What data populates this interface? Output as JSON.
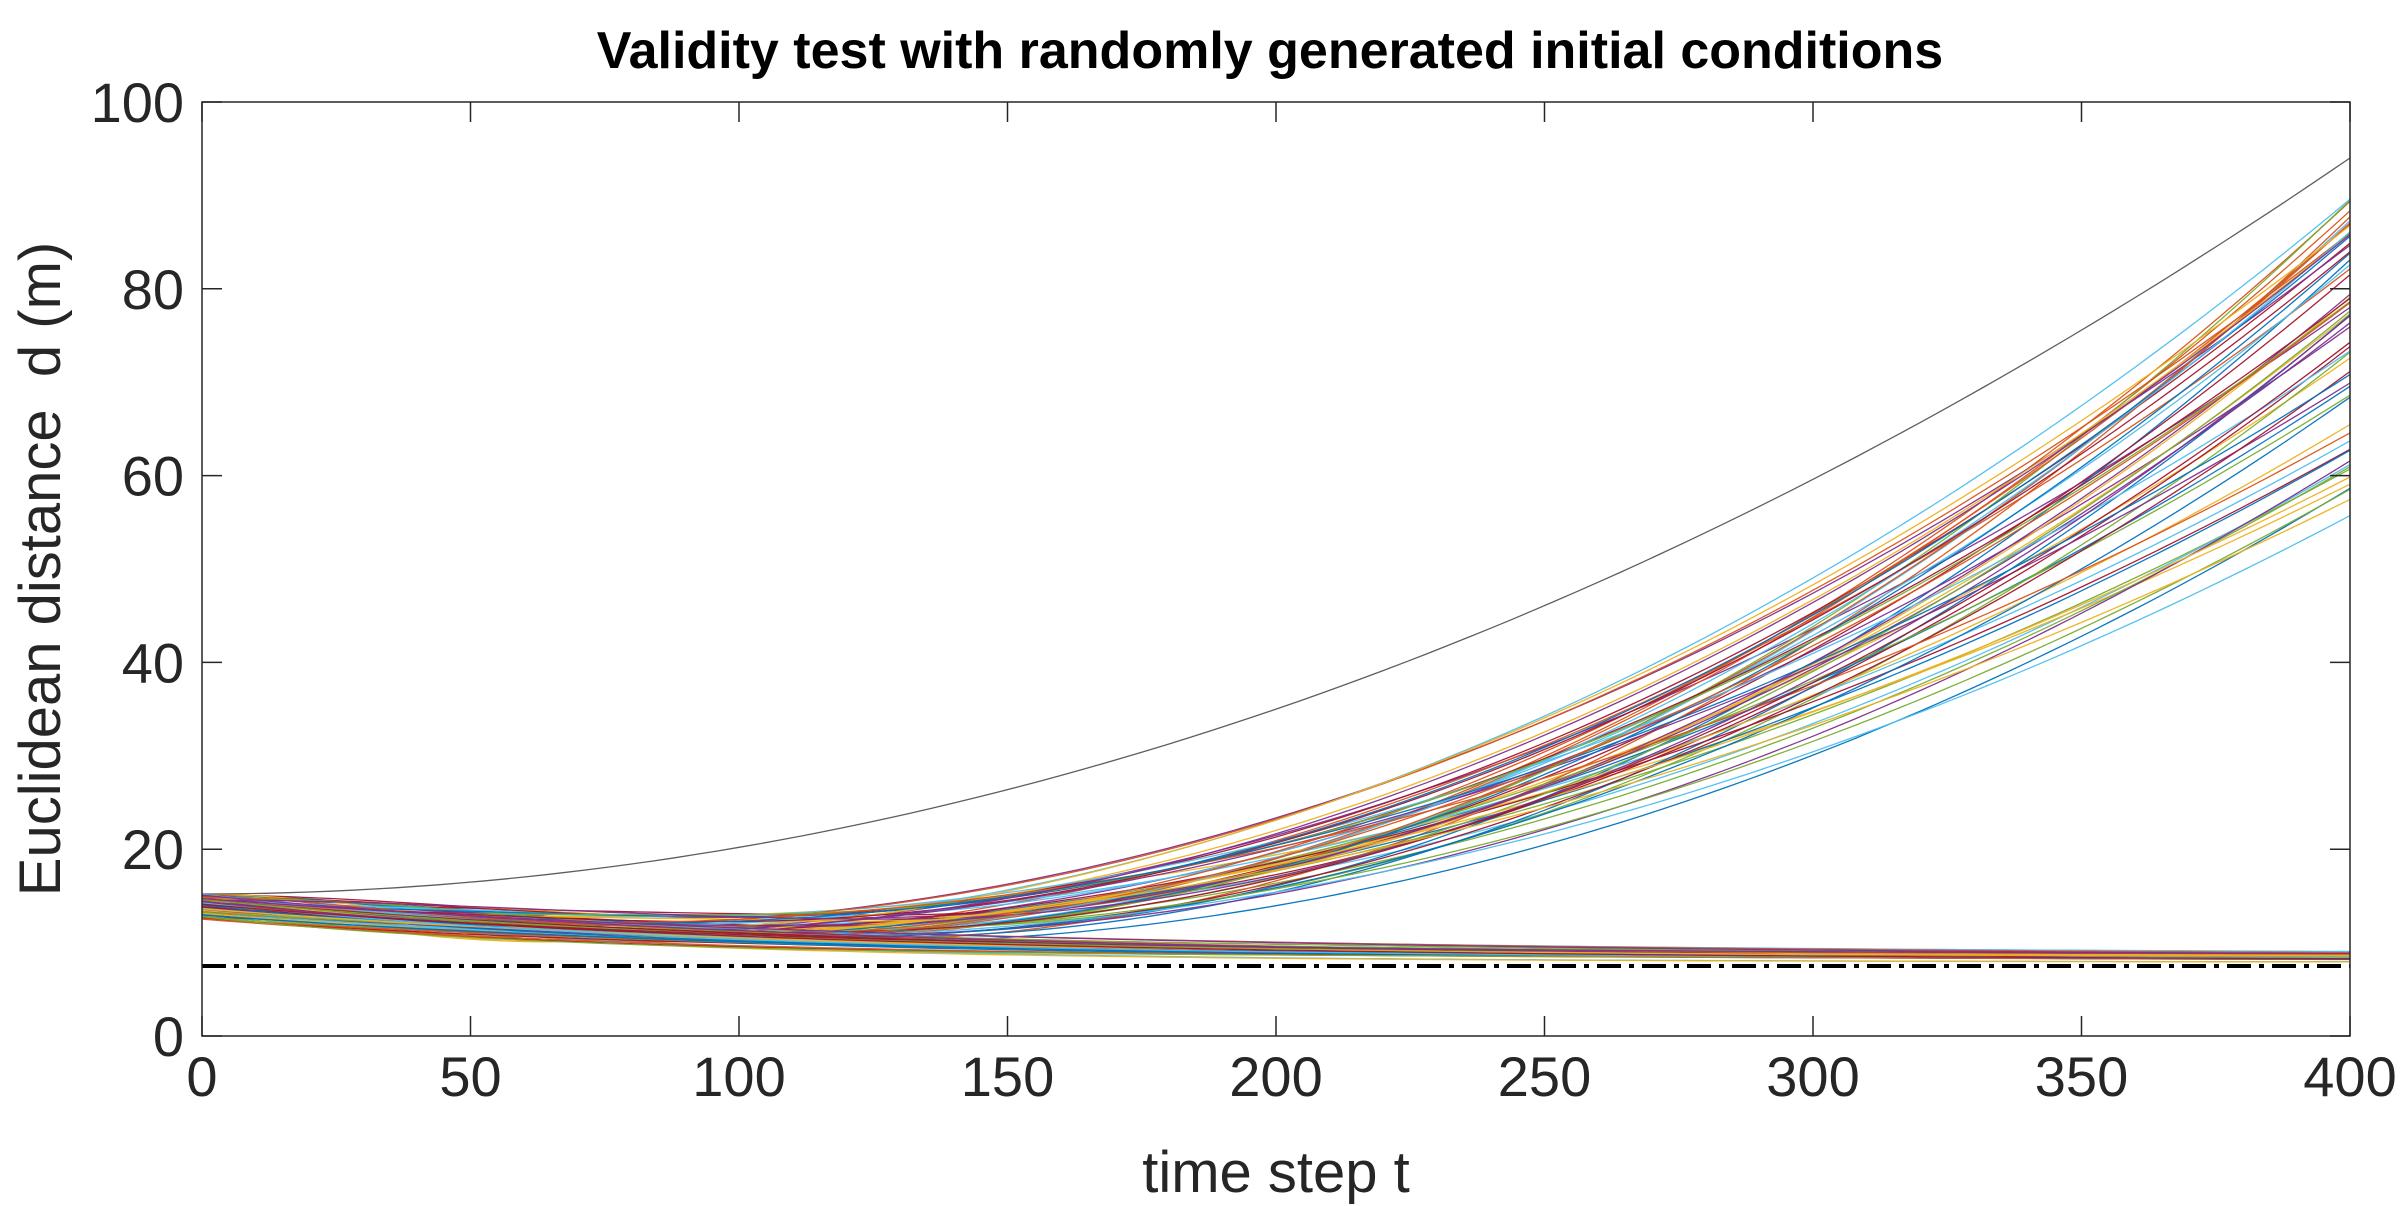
{
  "chart_data": {
    "type": "line",
    "title": "Validity test with randomly generated initial conditions",
    "xlabel": "time step t",
    "ylabel": "Euclidean distance  d (m)",
    "xlim": [
      0,
      400
    ],
    "ylim": [
      0,
      100
    ],
    "xticks": [
      0,
      50,
      100,
      150,
      200,
      250,
      300,
      350,
      400
    ],
    "yticks": [
      0,
      20,
      40,
      60,
      80,
      100
    ],
    "grid": false,
    "legend": "none",
    "reference_line": {
      "y": 7.5,
      "style": "dash-dot",
      "color": "#000000"
    },
    "series_groups": [
      {
        "kind": "diverging",
        "count": 60,
        "start_range": [
          12.5,
          15.2
        ],
        "end_range_at_400": [
          51,
          94
        ],
        "min_near_t": [
          60,
          130
        ],
        "min_range": [
          10,
          13
        ],
        "outlier_top": {
          "start": 15.2,
          "at_200": 35,
          "end": 94
        }
      },
      {
        "kind": "converging",
        "count": 45,
        "start_range": [
          12.5,
          15.2
        ],
        "end_range_at_400": [
          7.9,
          8.8
        ]
      }
    ],
    "palette": [
      "#0072BD",
      "#D95319",
      "#EDB120",
      "#7E2F8E",
      "#77AC30",
      "#4DBEEE",
      "#A2142F"
    ]
  }
}
